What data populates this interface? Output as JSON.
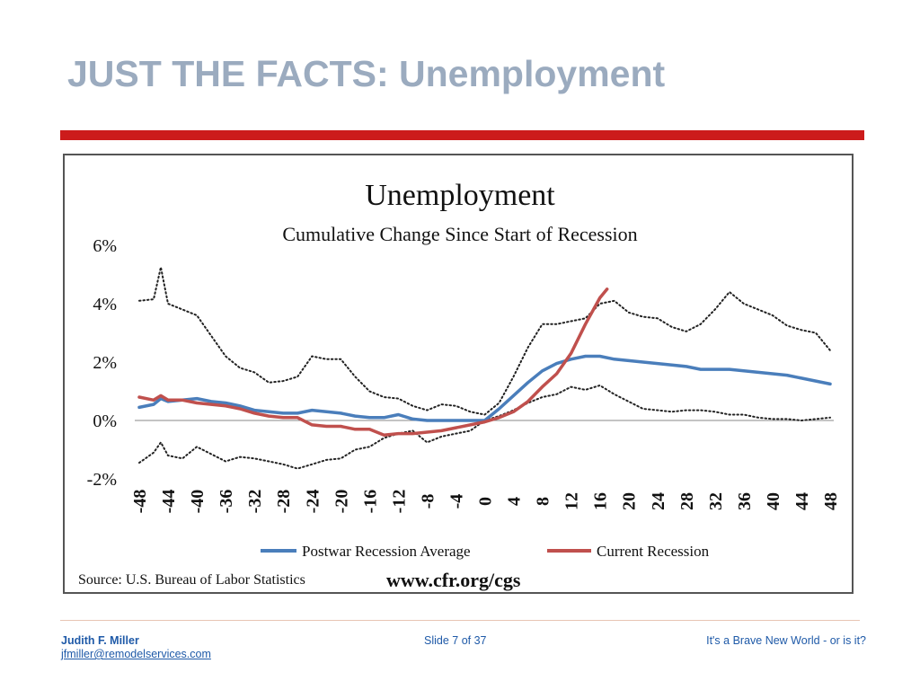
{
  "slide": {
    "title": "JUST THE FACTS: Unemployment"
  },
  "footer": {
    "author": "Judith F. Miller",
    "email": "jfmiller@remodelservices.com",
    "slide_number": "Slide 7 of 37",
    "tagline": "It's a Brave New World - or is it?"
  },
  "colors": {
    "title": "#9babbf",
    "accent_bar": "#cc1b1b",
    "footer_text": "#1f5aa8"
  },
  "chart_data": {
    "type": "line",
    "title": "Unemployment",
    "subtitle": "Cumulative Change Since Start of Recession",
    "xlabel": "",
    "ylabel": "",
    "x_ticks": [
      -48,
      -44,
      -40,
      -36,
      -32,
      -28,
      -24,
      -20,
      -16,
      -12,
      -8,
      -4,
      0,
      4,
      8,
      12,
      16,
      20,
      24,
      28,
      32,
      36,
      40,
      44,
      48
    ],
    "x_tick_labels": [
      "-48",
      "-44",
      "-40",
      "-36",
      "-32",
      "-28",
      "-24",
      "-20",
      "-16",
      "-12",
      "-8",
      "-4",
      "0",
      "4",
      "8",
      "12",
      "16",
      "20",
      "24",
      "28",
      "32",
      "36",
      "40",
      "44",
      "48"
    ],
    "y_ticks": [
      -2,
      0,
      2,
      4,
      6
    ],
    "y_tick_labels": [
      "-2%",
      "0%",
      "2%",
      "4%",
      "6%"
    ],
    "xlim": [
      -48,
      48
    ],
    "ylim": [
      -2,
      6
    ],
    "grid": false,
    "legend_position": "bottom",
    "source": "Source: U.S. Bureau of Labor Statistics",
    "url": "www.cfr.org/cgs",
    "series": [
      {
        "name": "Postwar Recession Average",
        "style": "solid",
        "color": "#4a7ebb",
        "points": [
          [
            -48,
            0.45
          ],
          [
            -46,
            0.55
          ],
          [
            -45,
            0.75
          ],
          [
            -44,
            0.65
          ],
          [
            -42,
            0.7
          ],
          [
            -40,
            0.75
          ],
          [
            -38,
            0.65
          ],
          [
            -36,
            0.6
          ],
          [
            -34,
            0.5
          ],
          [
            -32,
            0.35
          ],
          [
            -30,
            0.3
          ],
          [
            -28,
            0.25
          ],
          [
            -26,
            0.25
          ],
          [
            -24,
            0.35
          ],
          [
            -22,
            0.3
          ],
          [
            -20,
            0.25
          ],
          [
            -18,
            0.15
          ],
          [
            -16,
            0.1
          ],
          [
            -14,
            0.1
          ],
          [
            -12,
            0.2
          ],
          [
            -10,
            0.05
          ],
          [
            -8,
            0.0
          ],
          [
            -6,
            0.0
          ],
          [
            -4,
            0.0
          ],
          [
            -2,
            0.0
          ],
          [
            0,
            0.0
          ],
          [
            2,
            0.4
          ],
          [
            4,
            0.85
          ],
          [
            6,
            1.3
          ],
          [
            8,
            1.7
          ],
          [
            10,
            1.95
          ],
          [
            12,
            2.1
          ],
          [
            14,
            2.2
          ],
          [
            16,
            2.2
          ],
          [
            18,
            2.1
          ],
          [
            20,
            2.05
          ],
          [
            22,
            2.0
          ],
          [
            24,
            1.95
          ],
          [
            26,
            1.9
          ],
          [
            28,
            1.85
          ],
          [
            30,
            1.75
          ],
          [
            32,
            1.75
          ],
          [
            34,
            1.75
          ],
          [
            36,
            1.7
          ],
          [
            38,
            1.65
          ],
          [
            40,
            1.6
          ],
          [
            42,
            1.55
          ],
          [
            44,
            1.45
          ],
          [
            46,
            1.35
          ],
          [
            48,
            1.25
          ]
        ]
      },
      {
        "name": "Current Recession",
        "style": "solid",
        "color": "#c0504d",
        "points": [
          [
            -48,
            0.8
          ],
          [
            -46,
            0.7
          ],
          [
            -45,
            0.85
          ],
          [
            -44,
            0.7
          ],
          [
            -42,
            0.7
          ],
          [
            -40,
            0.6
          ],
          [
            -38,
            0.55
          ],
          [
            -36,
            0.5
          ],
          [
            -34,
            0.4
          ],
          [
            -32,
            0.25
          ],
          [
            -30,
            0.15
          ],
          [
            -28,
            0.1
          ],
          [
            -26,
            0.1
          ],
          [
            -24,
            -0.15
          ],
          [
            -22,
            -0.2
          ],
          [
            -20,
            -0.2
          ],
          [
            -18,
            -0.3
          ],
          [
            -16,
            -0.3
          ],
          [
            -14,
            -0.5
          ],
          [
            -12,
            -0.45
          ],
          [
            -10,
            -0.45
          ],
          [
            -8,
            -0.4
          ],
          [
            -6,
            -0.35
          ],
          [
            -4,
            -0.25
          ],
          [
            -2,
            -0.15
          ],
          [
            0,
            -0.05
          ],
          [
            2,
            0.1
          ],
          [
            4,
            0.3
          ],
          [
            6,
            0.65
          ],
          [
            8,
            1.15
          ],
          [
            10,
            1.6
          ],
          [
            12,
            2.3
          ],
          [
            14,
            3.3
          ],
          [
            16,
            4.2
          ],
          [
            17,
            4.5
          ]
        ]
      },
      {
        "name": "",
        "style": "dotted",
        "color": "#222222",
        "points": [
          [
            -48,
            4.1
          ],
          [
            -46,
            4.15
          ],
          [
            -45,
            5.25
          ],
          [
            -44,
            4.0
          ],
          [
            -42,
            3.8
          ],
          [
            -40,
            3.6
          ],
          [
            -38,
            2.9
          ],
          [
            -36,
            2.2
          ],
          [
            -34,
            1.8
          ],
          [
            -32,
            1.65
          ],
          [
            -30,
            1.3
          ],
          [
            -28,
            1.35
          ],
          [
            -26,
            1.5
          ],
          [
            -24,
            2.2
          ],
          [
            -22,
            2.1
          ],
          [
            -20,
            2.1
          ],
          [
            -18,
            1.5
          ],
          [
            -16,
            1.0
          ],
          [
            -14,
            0.8
          ],
          [
            -12,
            0.75
          ],
          [
            -10,
            0.5
          ],
          [
            -8,
            0.35
          ],
          [
            -6,
            0.55
          ],
          [
            -4,
            0.5
          ],
          [
            -2,
            0.3
          ],
          [
            0,
            0.2
          ],
          [
            2,
            0.6
          ],
          [
            4,
            1.5
          ],
          [
            6,
            2.5
          ],
          [
            8,
            3.3
          ],
          [
            10,
            3.3
          ],
          [
            12,
            3.4
          ],
          [
            14,
            3.5
          ],
          [
            16,
            4.0
          ],
          [
            18,
            4.1
          ],
          [
            20,
            3.7
          ],
          [
            22,
            3.55
          ],
          [
            24,
            3.5
          ],
          [
            26,
            3.2
          ],
          [
            28,
            3.05
          ],
          [
            30,
            3.3
          ],
          [
            32,
            3.8
          ],
          [
            34,
            4.4
          ],
          [
            36,
            4.0
          ],
          [
            38,
            3.8
          ],
          [
            40,
            3.6
          ],
          [
            42,
            3.25
          ],
          [
            44,
            3.1
          ],
          [
            46,
            3.0
          ],
          [
            48,
            2.4
          ]
        ]
      },
      {
        "name": "",
        "style": "dotted",
        "color": "#222222",
        "points": [
          [
            -48,
            -1.45
          ],
          [
            -46,
            -1.1
          ],
          [
            -45,
            -0.75
          ],
          [
            -44,
            -1.2
          ],
          [
            -42,
            -1.3
          ],
          [
            -40,
            -0.9
          ],
          [
            -38,
            -1.15
          ],
          [
            -36,
            -1.4
          ],
          [
            -34,
            -1.25
          ],
          [
            -32,
            -1.3
          ],
          [
            -30,
            -1.4
          ],
          [
            -28,
            -1.5
          ],
          [
            -26,
            -1.65
          ],
          [
            -24,
            -1.5
          ],
          [
            -22,
            -1.35
          ],
          [
            -20,
            -1.3
          ],
          [
            -18,
            -1.0
          ],
          [
            -16,
            -0.9
          ],
          [
            -14,
            -0.6
          ],
          [
            -12,
            -0.45
          ],
          [
            -10,
            -0.35
          ],
          [
            -8,
            -0.75
          ],
          [
            -6,
            -0.55
          ],
          [
            -4,
            -0.45
          ],
          [
            -2,
            -0.35
          ],
          [
            0,
            0.0
          ],
          [
            2,
            0.15
          ],
          [
            4,
            0.35
          ],
          [
            6,
            0.6
          ],
          [
            8,
            0.8
          ],
          [
            10,
            0.9
          ],
          [
            12,
            1.15
          ],
          [
            14,
            1.05
          ],
          [
            16,
            1.2
          ],
          [
            18,
            0.9
          ],
          [
            20,
            0.65
          ],
          [
            22,
            0.4
          ],
          [
            24,
            0.35
          ],
          [
            26,
            0.3
          ],
          [
            28,
            0.35
          ],
          [
            30,
            0.35
          ],
          [
            32,
            0.3
          ],
          [
            34,
            0.2
          ],
          [
            36,
            0.2
          ],
          [
            38,
            0.1
          ],
          [
            40,
            0.05
          ],
          [
            42,
            0.05
          ],
          [
            44,
            0.0
          ],
          [
            46,
            0.05
          ],
          [
            48,
            0.1
          ]
        ]
      }
    ]
  }
}
